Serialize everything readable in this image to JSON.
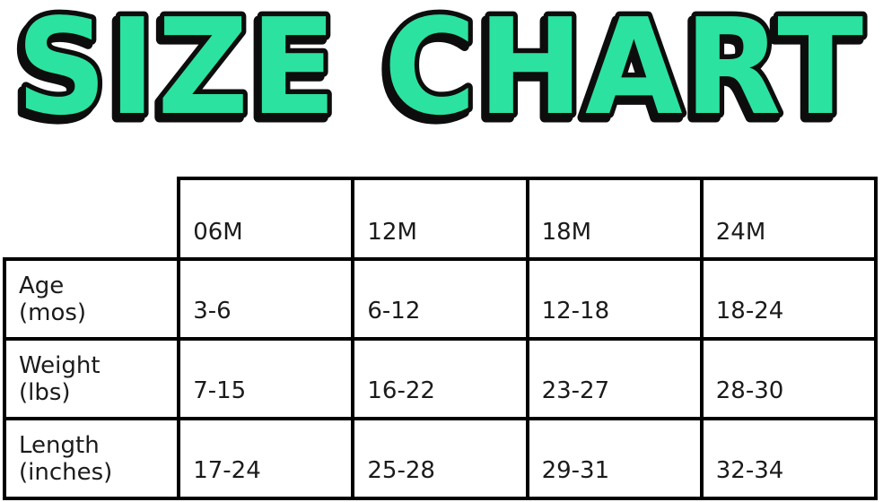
{
  "title": "SIZE CHART",
  "colors": {
    "title_fill": "#2CE2A0",
    "title_outline": "#0d0d0d",
    "table_border": "#000000",
    "text": "#1b1b1b",
    "background": "#ffffff"
  },
  "table": {
    "columns": [
      "06M",
      "12M",
      "18M",
      "24M"
    ],
    "rows": [
      {
        "label": "Age",
        "unit": "(mos)",
        "values": [
          "3-6",
          "6-12",
          "12-18",
          "18-24"
        ]
      },
      {
        "label": "Weight",
        "unit": "(lbs)",
        "values": [
          "7-15",
          "16-22",
          "23-27",
          "28-30"
        ]
      },
      {
        "label": "Length",
        "unit": "(inches)",
        "values": [
          "17-24",
          "25-28",
          "29-31",
          "32-34"
        ]
      }
    ]
  },
  "chart_data": {
    "type": "table",
    "title": "SIZE CHART",
    "columns": [
      "",
      "06M",
      "12M",
      "18M",
      "24M"
    ],
    "rows": [
      [
        "Age (mos)",
        "3-6",
        "6-12",
        "12-18",
        "18-24"
      ],
      [
        "Weight (lbs)",
        "7-15",
        "16-22",
        "23-27",
        "28-30"
      ],
      [
        "Length (inches)",
        "17-24",
        "25-28",
        "29-31",
        "32-34"
      ]
    ],
    "layout": {
      "header_row": true,
      "corner_cell_empty": true,
      "grid": "4px solid black"
    }
  }
}
